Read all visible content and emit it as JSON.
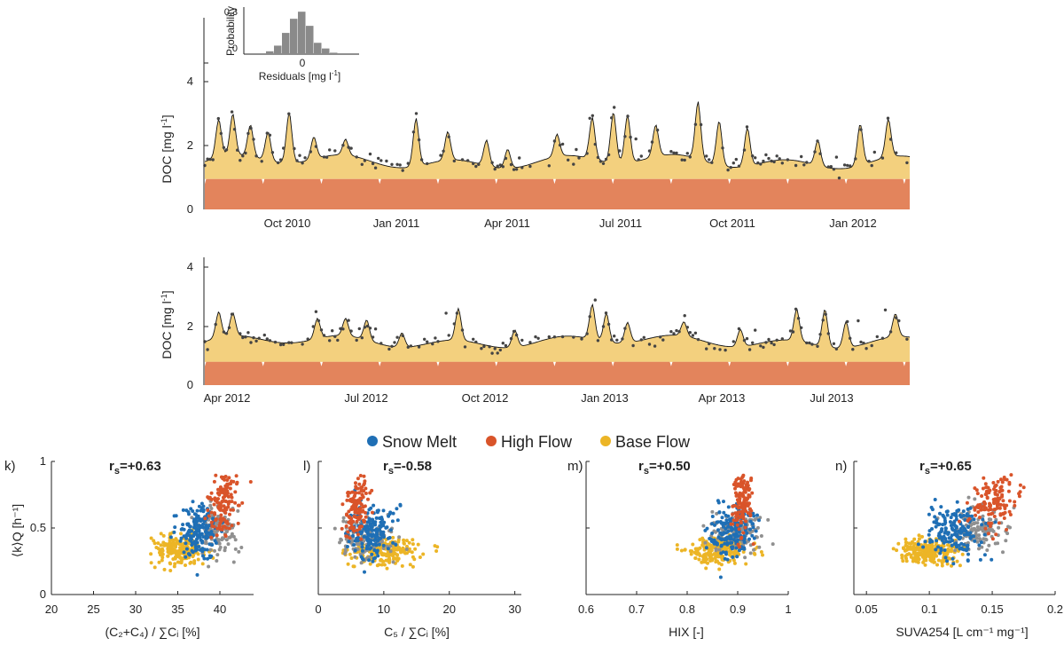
{
  "colors": {
    "snow_melt": "#1f6fb5",
    "high_flow": "#d9542a",
    "base_flow": "#ecb526",
    "unclassified": "#909090",
    "fill_upper": "#f3d07e",
    "fill_lower": "#e3845c",
    "obs": "#444444"
  },
  "legend": {
    "items": [
      {
        "key": "snow_melt",
        "label": "Snow Melt"
      },
      {
        "key": "high_flow",
        "label": "High Flow"
      },
      {
        "key": "base_flow",
        "label": "Base Flow"
      }
    ]
  },
  "chart_data": [
    {
      "id": "ts-top",
      "type": "area",
      "ylabel_main": "DOC [mg l",
      "ylabel_sup": "-1",
      "ylabel_end": "]",
      "yticks": [
        "0",
        "2",
        "4"
      ],
      "ylim": [
        0,
        6
      ],
      "xticks": [
        "Oct 2010",
        "Jan 2011",
        "Apr 2011",
        "Jul 2011",
        "Oct 2011",
        "Jan 2012"
      ],
      "series": [
        {
          "name": "lower component",
          "level": 0.95
        },
        {
          "name": "model total",
          "baseline": 1.5
        },
        {
          "name": "observed DOC",
          "type": "scatter"
        }
      ],
      "peaks": [
        [
          0.02,
          1.2
        ],
        [
          0.04,
          1.3
        ],
        [
          0.065,
          1.0
        ],
        [
          0.09,
          0.9
        ],
        [
          0.12,
          1.6
        ],
        [
          0.155,
          0.7
        ],
        [
          0.2,
          0.5
        ],
        [
          0.3,
          1.5
        ],
        [
          0.345,
          0.9
        ],
        [
          0.4,
          0.8
        ],
        [
          0.43,
          0.6
        ],
        [
          0.5,
          0.7
        ],
        [
          0.55,
          1.3
        ],
        [
          0.58,
          1.6
        ],
        [
          0.6,
          1.5
        ],
        [
          0.64,
          1.0
        ],
        [
          0.7,
          1.8
        ],
        [
          0.73,
          1.4
        ],
        [
          0.77,
          1.2
        ],
        [
          0.87,
          0.8
        ],
        [
          0.93,
          1.3
        ],
        [
          0.97,
          1.2
        ]
      ],
      "inset": {
        "type": "bar",
        "ylabel": "Probability",
        "yticks": [
          "0",
          "0.3"
        ],
        "xtick": "0",
        "xlabel_main": "Residuals [mg l",
        "xlabel_sup": "-1",
        "xlabel_end": "]",
        "values": [
          0.02,
          0.06,
          0.15,
          0.25,
          0.3,
          0.2,
          0.08,
          0.04,
          0.01
        ]
      }
    },
    {
      "id": "ts-bottom",
      "type": "area",
      "ylabel_main": "DOC [mg l",
      "ylabel_sup": "-1",
      "ylabel_end": "]",
      "yticks": [
        "0",
        "2",
        "4"
      ],
      "ylim": [
        0,
        4.4
      ],
      "xticks": [
        "Apr 2012",
        "Jul 2012",
        "Oct 2012",
        "Jan 2013",
        "Apr 2013",
        "Jul 2013"
      ],
      "series": [
        {
          "name": "lower component",
          "level": 0.8
        },
        {
          "name": "model total",
          "baseline": 1.5
        },
        {
          "name": "observed DOC",
          "type": "scatter"
        }
      ],
      "peaks": [
        [
          0.02,
          0.9
        ],
        [
          0.04,
          0.8
        ],
        [
          0.16,
          0.7
        ],
        [
          0.2,
          0.6
        ],
        [
          0.23,
          0.7
        ],
        [
          0.28,
          0.5
        ],
        [
          0.36,
          1.1
        ],
        [
          0.44,
          0.6
        ],
        [
          0.55,
          1.2
        ],
        [
          0.57,
          1.0
        ],
        [
          0.6,
          0.7
        ],
        [
          0.68,
          0.5
        ],
        [
          0.76,
          0.6
        ],
        [
          0.84,
          1.1
        ],
        [
          0.88,
          1.3
        ],
        [
          0.91,
          0.9
        ],
        [
          0.98,
          0.8
        ]
      ]
    },
    {
      "id": "scatter-k",
      "type": "scatter",
      "panel": "k)",
      "rs": "r",
      "rs_sub": "s",
      "rs_val": "=+0.63",
      "xlim": [
        20,
        44
      ],
      "xticks": [
        "20",
        "25",
        "30",
        "35",
        "40"
      ],
      "xtick_vals": [
        20,
        25,
        30,
        35,
        40
      ],
      "ylim": [
        0,
        1
      ],
      "yticks": [
        "0",
        "0.5",
        "1"
      ],
      "xlabel": "(C₂+C₄) /  ∑Cᵢ [%]",
      "ylabel": "⟨k⟩Q [h⁻¹]",
      "clusters": {
        "base_flow": [
          35,
          0.33,
          2.5,
          0.05
        ],
        "snow_melt": [
          37.5,
          0.47,
          2.0,
          0.1
        ],
        "high_flow": [
          40.5,
          0.68,
          1.5,
          0.12
        ],
        "unclassified": [
          40,
          0.48,
          2.0,
          0.08
        ]
      }
    },
    {
      "id": "scatter-l",
      "type": "scatter",
      "panel": "l)",
      "rs": "r",
      "rs_sub": "s",
      "rs_val": "=-0.58",
      "xlim": [
        0,
        31
      ],
      "xticks": [
        "0",
        "10",
        "20",
        "30"
      ],
      "xtick_vals": [
        0,
        10,
        20,
        30
      ],
      "ylim": [
        0,
        1
      ],
      "yticks": [
        "0",
        "0.5",
        "1"
      ],
      "xlabel": "C₅ /  ∑Cᵢ [%]",
      "clusters": {
        "base_flow": [
          10,
          0.33,
          4,
          0.05
        ],
        "snow_melt": [
          8,
          0.47,
          3,
          0.1
        ],
        "high_flow": [
          6,
          0.68,
          1.5,
          0.12
        ],
        "unclassified": [
          7,
          0.42,
          4,
          0.08
        ]
      }
    },
    {
      "id": "scatter-m",
      "type": "scatter",
      "panel": "m)",
      "rs": "r",
      "rs_sub": "s",
      "rs_val": "=+0.50",
      "xlim": [
        0.6,
        1.0
      ],
      "xticks": [
        "0.6",
        "0.7",
        "0.8",
        "0.9",
        "1"
      ],
      "xtick_vals": [
        0.6,
        0.7,
        0.8,
        0.9,
        1.0
      ],
      "ylim": [
        0,
        1
      ],
      "yticks": [
        "0",
        "0.5",
        "1"
      ],
      "xlabel": "HIX [-]",
      "clusters": {
        "base_flow": [
          0.86,
          0.33,
          0.05,
          0.05
        ],
        "snow_melt": [
          0.89,
          0.47,
          0.035,
          0.1
        ],
        "high_flow": [
          0.91,
          0.68,
          0.015,
          0.12
        ],
        "unclassified": [
          0.9,
          0.48,
          0.04,
          0.08
        ]
      }
    },
    {
      "id": "scatter-n",
      "type": "scatter",
      "panel": "n)",
      "rs": "r",
      "rs_sub": "s",
      "rs_val": "=+0.65",
      "xlim": [
        0.04,
        0.2
      ],
      "xticks": [
        "0.05",
        "0.1",
        "0.15",
        "0.2"
      ],
      "xtick_vals": [
        0.05,
        0.1,
        0.15,
        0.2
      ],
      "ylim": [
        0,
        1
      ],
      "yticks": [
        "0",
        "0.5",
        "1"
      ],
      "xlabel": "SUVA254 [L cm⁻¹ mg⁻¹]",
      "clusters": {
        "base_flow": [
          0.1,
          0.33,
          0.02,
          0.05
        ],
        "snow_melt": [
          0.12,
          0.47,
          0.018,
          0.1
        ],
        "high_flow": [
          0.15,
          0.7,
          0.015,
          0.1
        ],
        "unclassified": [
          0.14,
          0.5,
          0.02,
          0.08
        ]
      }
    }
  ]
}
